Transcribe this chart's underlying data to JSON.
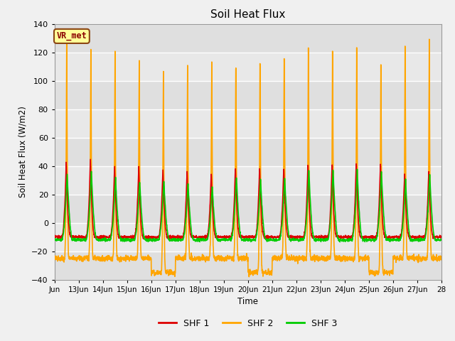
{
  "title": "Soil Heat Flux",
  "ylabel": "Soil Heat Flux (W/m2)",
  "xlabel": "Time",
  "ylim": [
    -40,
    140
  ],
  "background_color": "#f0f0f0",
  "plot_bg_color": "#e8e8e8",
  "grid_color": "#ffffff",
  "series": [
    "SHF 1",
    "SHF 2",
    "SHF 3"
  ],
  "colors": [
    "#dd0000",
    "#ffa500",
    "#00cc00"
  ],
  "linewidths": [
    1.2,
    1.2,
    1.2
  ],
  "xtick_labels": [
    "Jun",
    "13Jun",
    "14Jun",
    "15Jun",
    "16Jun",
    "17Jun",
    "18Jun",
    "19Jun",
    "20Jun",
    "21Jun",
    "22Jun",
    "23Jun",
    "24Jun",
    "25Jun",
    "26Jun",
    "27Jun",
    "28"
  ],
  "legend_box_color": "#ffff99",
  "legend_box_edge": "#8b4513",
  "legend_text": "VR_met",
  "n_days": 16,
  "pts_per_day": 144,
  "shf2_peaks": [
    130,
    125,
    126,
    121,
    116,
    120,
    125,
    125,
    126,
    130,
    135,
    131,
    130,
    117,
    128,
    128
  ],
  "shf1_peaks": [
    43,
    45,
    40,
    40,
    38,
    37,
    36,
    40,
    40,
    40,
    42,
    43,
    43,
    42,
    35,
    37
  ],
  "shf3_peaks": [
    35,
    37,
    32,
    30,
    30,
    28,
    26,
    33,
    31,
    32,
    37,
    38,
    37,
    37,
    30,
    34
  ],
  "shf1_night": -10,
  "shf2_night": -25,
  "shf3_night": -12,
  "shf2_deep_nights": [
    4,
    8,
    13
  ],
  "shf2_deep_val": -35
}
